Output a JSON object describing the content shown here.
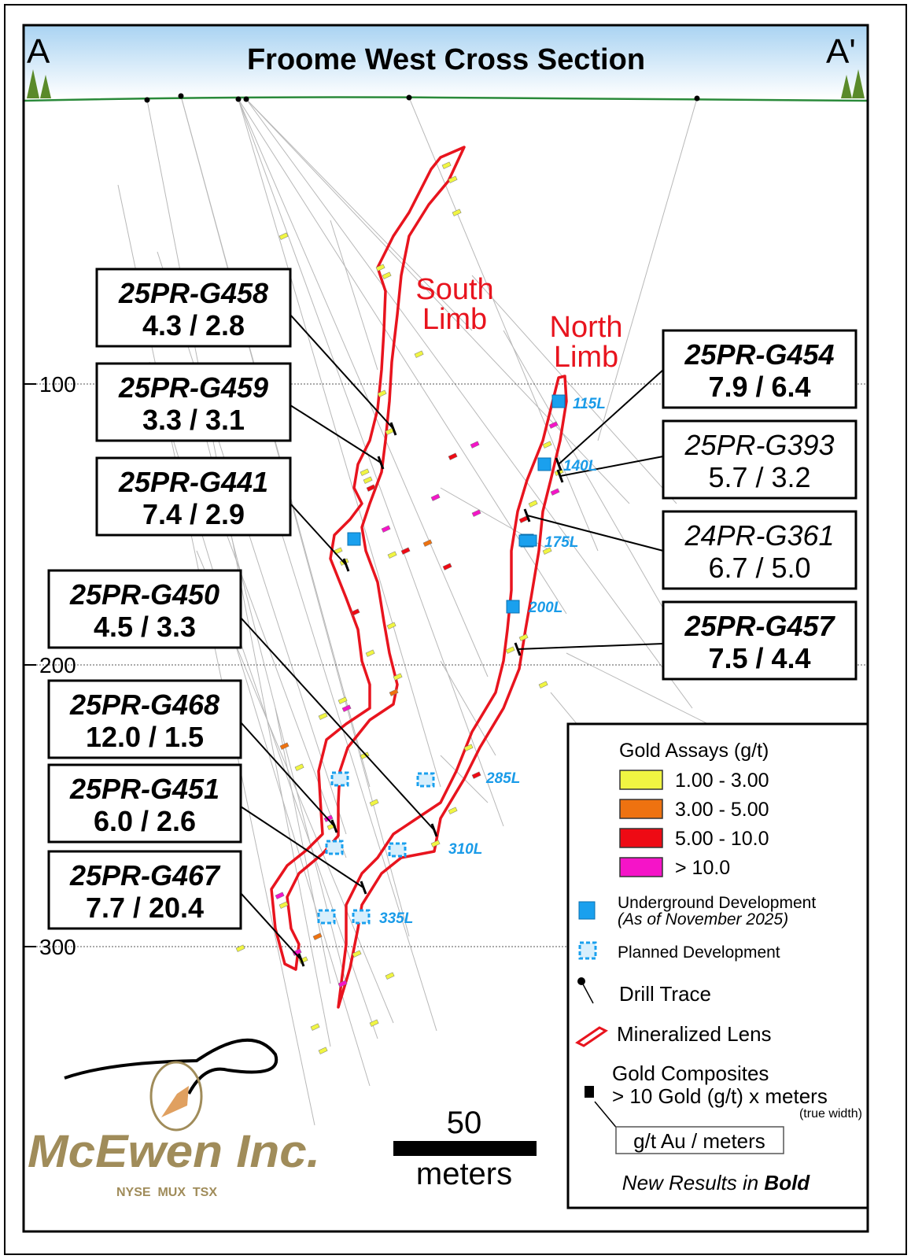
{
  "title": "Froome West Cross Section",
  "section_start": "A",
  "section_end": "A'",
  "lens_labels": {
    "south": "South\nLimb",
    "north": "North\nLimb",
    "south_l1": "South",
    "south_l2": "Limb",
    "north_l1": "North",
    "north_l2": "Limb"
  },
  "depth_labels": [
    "100",
    "200",
    "300"
  ],
  "levels": [
    "115L",
    "140L",
    "175L",
    "200L",
    "285L",
    "310L",
    "335L"
  ],
  "callouts": [
    {
      "hole": "25PR-G458",
      "values": "4.3 / 2.8",
      "bold": true
    },
    {
      "hole": "25PR-G459",
      "values": "3.3 / 3.1",
      "bold": true
    },
    {
      "hole": "25PR-G441",
      "values": "7.4 / 2.9",
      "bold": true
    },
    {
      "hole": "25PR-G450",
      "values": "4.5 / 3.3",
      "bold": true
    },
    {
      "hole": "25PR-G468",
      "values": "12.0 / 1.5",
      "bold": true
    },
    {
      "hole": "25PR-G451",
      "values": "6.0 / 2.6",
      "bold": true
    },
    {
      "hole": "25PR-G467",
      "values": "7.7 / 20.4",
      "bold": true
    },
    {
      "hole": "25PR-G454",
      "values": "7.9 / 6.4",
      "bold": true
    },
    {
      "hole": "25PR-G393",
      "values": "5.7 / 3.2",
      "bold": false
    },
    {
      "hole": "24PR-G361",
      "values": "6.7 / 5.0",
      "bold": false
    },
    {
      "hole": "25PR-G457",
      "values": "7.5 / 4.4",
      "bold": true
    }
  ],
  "scale_bar": {
    "value": "50",
    "unit": "meters"
  },
  "legend": {
    "assay_title": "Gold Assays (g/t)",
    "assays": [
      {
        "label": "1.00 - 3.00",
        "color": "#f0f542"
      },
      {
        "label": "3.00 - 5.00",
        "color": "#ee7210"
      },
      {
        "label": "5.00 - 10.0",
        "color": "#ee0a14"
      },
      {
        "label": "> 10.0",
        "color": "#f514c8"
      }
    ],
    "underground": "Underground Development",
    "underground_date": "(As of November 2025)",
    "planned": "Planned Development",
    "drill_trace": "Drill Trace",
    "lens": "Mineralized Lens",
    "composites_title": "Gold Composites",
    "composites_desc": "> 10 Gold (g/t) x meters",
    "composites_note": "(true width)",
    "composites_format": "g/t Au / meters",
    "new_results": "New Results in ",
    "new_results_bold": "Bold"
  },
  "logo": {
    "name": "McEwen Inc.",
    "exchanges": "NYSE  MUX  TSX"
  },
  "colors": {
    "lens": "#e8141e",
    "development": "#1aa0ee",
    "level_text": "#1a9be8",
    "ground": "#2a8a3a",
    "logo": "#a08c5a"
  }
}
